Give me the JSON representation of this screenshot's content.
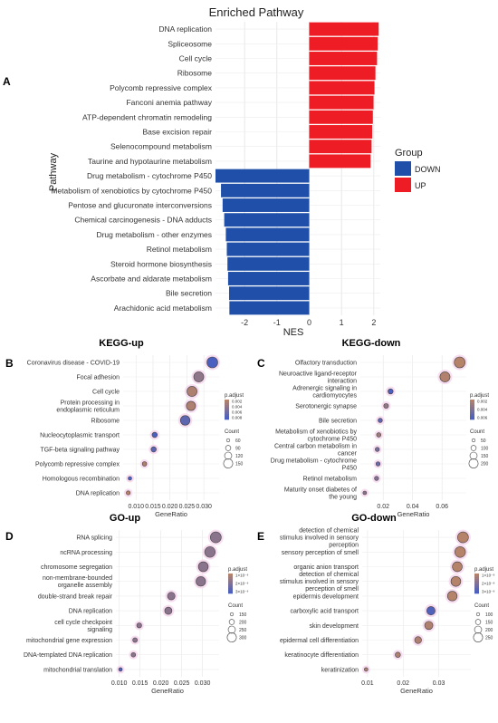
{
  "panel_A": {
    "letter": "A",
    "title": "Enriched Pathway",
    "legend_title": "Group",
    "legend_labels": [
      "DOWN",
      "UP"
    ],
    "colors": {
      "DOWN": "#1f4fa8",
      "UP": "#ee1c24"
    },
    "xlabel": "NES",
    "ylabel": "Pathway",
    "xticks": [
      "-2",
      "-1",
      "0",
      "1",
      "2"
    ]
  },
  "panel_B": {
    "letter": "B",
    "title": "KEGG-up",
    "xlabel": "GeneRatio",
    "xticks": [
      "0.010",
      "0.015",
      "0.020",
      "0.025",
      "0.030"
    ],
    "legend_color_title": "p.adjust",
    "legend_color_ticks": [
      "0.002",
      "0.004",
      "0.006",
      "0.008"
    ],
    "legend_size_title": "Count",
    "legend_size_ticks": [
      "60",
      "90",
      "120",
      "150"
    ]
  },
  "panel_C": {
    "letter": "C",
    "title": "KEGG-down",
    "xlabel": "GeneRatio",
    "xticks": [
      "0.02",
      "0.04",
      "0.06"
    ],
    "legend_color_title": "p.adjust",
    "legend_color_ticks": [
      "0.002",
      "0.004",
      "0.006"
    ],
    "legend_size_title": "Count",
    "legend_size_ticks": [
      "50",
      "100",
      "150",
      "200"
    ]
  },
  "panel_D": {
    "letter": "D",
    "title": "GO-up",
    "xlabel": "GeneRatio",
    "xticks": [
      "0.010",
      "0.015",
      "0.020",
      "0.025",
      "0.030"
    ],
    "legend_color_title": "p.adjust",
    "legend_color_ticks": [
      "1×10⁻⁹",
      "2×10⁻⁹",
      "3×10⁻⁹"
    ],
    "legend_size_title": "Count",
    "legend_size_ticks": [
      "150",
      "200",
      "250",
      "300"
    ]
  },
  "panel_E": {
    "letter": "E",
    "title": "GO-down",
    "xlabel": "GeneRatio",
    "xticks": [
      "0.01",
      "0.02",
      "0.03"
    ],
    "legend_color_title": "p.adjust",
    "legend_color_ticks": [
      "1×10⁻⁸",
      "2×10⁻⁸",
      "3×10⁻⁸"
    ],
    "legend_size_title": "Count",
    "legend_size_ticks": [
      "100",
      "150",
      "200",
      "250"
    ]
  },
  "chart_data": [
    {
      "id": "A",
      "type": "bar",
      "orientation": "horizontal",
      "title": "Enriched Pathway",
      "xlabel": "NES",
      "ylabel": "Pathway",
      "xlim": [
        -2.9,
        2.2
      ],
      "categories": [
        "DNA replication",
        "Spliceosome",
        "Cell cycle",
        "Ribosome",
        "Polycomb repressive complex",
        "Fanconi anemia pathway",
        "ATP-dependent chromatin remodeling",
        "Base excision repair",
        "Selenocompound metabolism",
        "Taurine and hypotaurine metabolism",
        "Drug metabolism - cytochrome P450",
        "Metabolism of xenobiotics by cytochrome P450",
        "Pentose and glucuronate interconversions",
        "Chemical carcinogenesis - DNA adducts",
        "Drug metabolism - other enzymes",
        "Retinol metabolism",
        "Steroid hormone biosynthesis",
        "Ascorbate and aldarate metabolism",
        "Bile secretion",
        "Arachidonic acid metabolism"
      ],
      "values": [
        2.15,
        2.12,
        2.1,
        2.05,
        2.02,
        1.99,
        1.97,
        1.95,
        1.93,
        1.9,
        -2.9,
        -2.73,
        -2.68,
        -2.63,
        -2.58,
        -2.55,
        -2.53,
        -2.51,
        -2.48,
        -2.47
      ],
      "groups": [
        "UP",
        "UP",
        "UP",
        "UP",
        "UP",
        "UP",
        "UP",
        "UP",
        "UP",
        "UP",
        "DOWN",
        "DOWN",
        "DOWN",
        "DOWN",
        "DOWN",
        "DOWN",
        "DOWN",
        "DOWN",
        "DOWN",
        "DOWN"
      ]
    },
    {
      "id": "B",
      "type": "scatter",
      "title": "KEGG-up",
      "xlabel": "GeneRatio",
      "xlim": [
        0.0062,
        0.0345
      ],
      "categories": [
        "Coronavirus disease - COVID-19",
        "Focal adhesion",
        "Cell cycle",
        "Protein processing in endoplasmic reticulum",
        "Ribosome",
        "Nucleocytoplasmic transport",
        "TGF-beta signaling pathway",
        "Polycomb repressive complex",
        "Homologous recombination",
        "DNA replication"
      ],
      "x": [
        0.0325,
        0.0285,
        0.0265,
        0.0262,
        0.0245,
        0.0155,
        0.0152,
        0.0125,
        0.0082,
        0.0077
      ],
      "p_adjust": [
        0.0085,
        0.004,
        0.002,
        0.002,
        0.0072,
        0.0085,
        0.0075,
        0.002,
        0.0082,
        0.0015
      ],
      "count": [
        150,
        140,
        140,
        130,
        135,
        80,
        80,
        70,
        60,
        65
      ]
    },
    {
      "id": "C",
      "type": "scatter",
      "title": "KEGG-down",
      "xlabel": "GeneRatio",
      "xlim": [
        0.0045,
        0.0765
      ],
      "categories": [
        "Olfactory transduction",
        "Neuroactive ligand-receptor interaction",
        "Adrenergic signaling in cardiomyocytes",
        "Serotonergic synapse",
        "Bile secretion",
        "Metabolism of xenobiotics by cytochrome P450",
        "Central carbon metabolism in cancer",
        "Drug metabolism - cytochrome P450",
        "Retinol metabolism",
        "Maturity onset diabetes of the young"
      ],
      "x": [
        0.072,
        0.062,
        0.025,
        0.022,
        0.018,
        0.017,
        0.016,
        0.0165,
        0.0155,
        0.0075
      ],
      "p_adjust": [
        0.001,
        0.0012,
        0.006,
        0.0025,
        0.005,
        0.002,
        0.004,
        0.0045,
        0.0035,
        0.003
      ],
      "count": [
        220,
        200,
        70,
        60,
        50,
        50,
        45,
        45,
        45,
        30
      ]
    },
    {
      "id": "D",
      "type": "scatter",
      "title": "GO-up",
      "xlabel": "GeneRatio",
      "xlim": [
        0.0092,
        0.034
      ],
      "categories": [
        "RNA splicing",
        "ncRNA processing",
        "chromosome segregation",
        "non-membrane-bounded organelle assembly",
        "double-strand break repair",
        "DNA replication",
        "cell cycle checkpoint signaling",
        "mitochondrial gene expression",
        "DNA-templated DNA replication",
        "mitochondrial translation"
      ],
      "x": [
        0.0332,
        0.0318,
        0.0302,
        0.0296,
        0.0225,
        0.0218,
        0.0148,
        0.0138,
        0.0134,
        0.0103
      ],
      "p_adjust": [
        2e-09,
        2e-09,
        2e-09,
        2e-09,
        2e-09,
        2e-09,
        2e-09,
        2e-09,
        2e-09,
        3.4e-09
      ],
      "count": [
        330,
        320,
        300,
        290,
        230,
        220,
        150,
        140,
        135,
        110
      ]
    },
    {
      "id": "E",
      "type": "scatter",
      "title": "GO-down",
      "xlabel": "GeneRatio",
      "xlim": [
        0.0085,
        0.039
      ],
      "categories": [
        "detection of chemical stimulus involved in sensory perception",
        "sensory perception of smell",
        "organic anion transport",
        "detection of chemical stimulus involved in sensory perception of smell",
        "epidermis development",
        "carboxylic acid transport",
        "skin development",
        "epidermal cell differentiation",
        "keratinocyte differentiation",
        "keratinization"
      ],
      "x": [
        0.0368,
        0.036,
        0.0352,
        0.0348,
        0.0338,
        0.0278,
        0.0272,
        0.0242,
        0.0185,
        0.0096
      ],
      "p_adjust": [
        1e-08,
        1e-08,
        1e-08,
        1e-08,
        1e-08,
        3.6e-08,
        1.2e-08,
        1.2e-08,
        1.2e-08,
        1.2e-08
      ],
      "count": [
        270,
        265,
        245,
        245,
        240,
        210,
        205,
        170,
        130,
        90
      ]
    }
  ]
}
